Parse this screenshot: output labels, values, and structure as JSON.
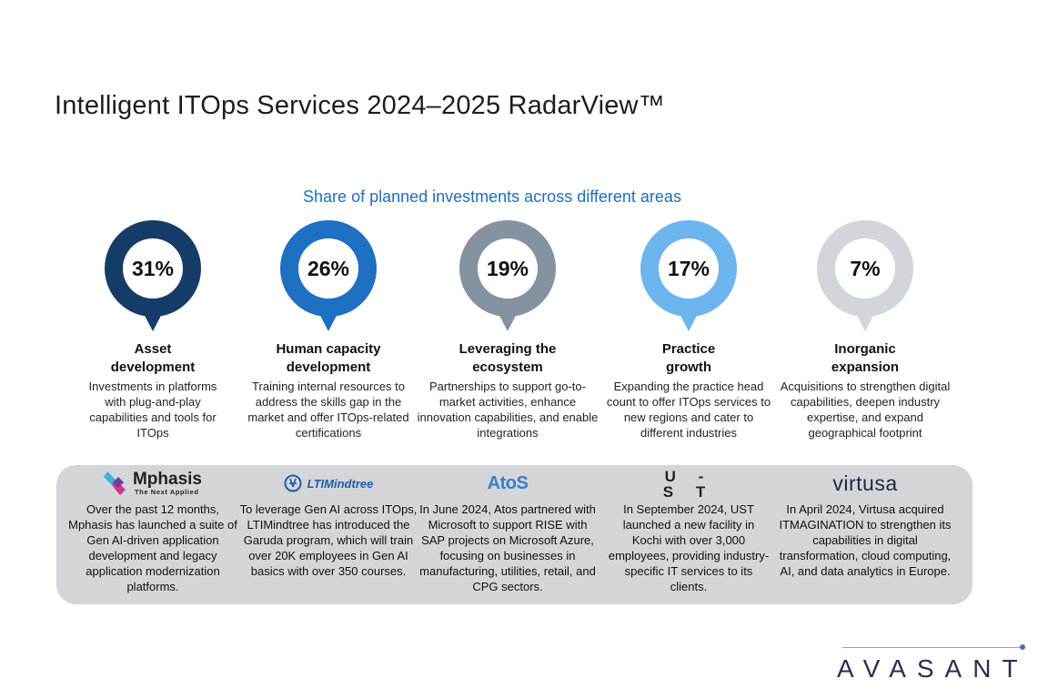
{
  "title": "Intelligent ITOps Services 2024–2025 RadarView™",
  "subtitle": "Share of planned investments across different areas",
  "areas": [
    {
      "percent": "31%",
      "value": 31,
      "color": "#163c69",
      "title": "Asset development",
      "description": "Investments in platforms with plug-and-play capabilities and tools for ITOps"
    },
    {
      "percent": "26%",
      "value": 26,
      "color": "#1d70c2",
      "title": "Human capacity development",
      "description": "Training internal resources to address the skills gap in the market and offer ITOps-related certifications"
    },
    {
      "percent": "19%",
      "value": 19,
      "color": "#8593a1",
      "title": "Leveraging the ecosystem",
      "description": "Partnerships to support go-to-market activities, enhance innovation capabilities, and enable integrations"
    },
    {
      "percent": "17%",
      "value": 17,
      "color": "#6cb5ee",
      "title": "Practice growth",
      "description": "Expanding the practice head count to offer ITOps services to new regions and cater to different industries"
    },
    {
      "percent": "7%",
      "value": 7,
      "color": "#d2d5da",
      "title": "Inorganic expansion",
      "description": "Acquisitions to strengthen digital capabilities, deepen industry expertise, and expand geographical footprint"
    }
  ],
  "companies": {
    "mphasis": {
      "name": "Mphasis",
      "tagline": "The Next Applied",
      "text": "Over the past 12 months, Mphasis has launched a suite of Gen AI-driven application development and legacy application modernization platforms."
    },
    "ltimindtree": {
      "name": "LTIMindtree",
      "text": "To leverage Gen AI across ITOps, LTIMindtree has introduced the Garuda program, which will train over 20K employees in Gen AI basics with over 350 courses."
    },
    "atos": {
      "name": "AtoS",
      "text": "In June 2024, Atos partnered with Microsoft to support RISE with SAP projects on Microsoft Azure, focusing on businesses in manufacturing, utilities, retail, and CPG sectors."
    },
    "ust": {
      "name_top": "U -",
      "name_bottom": "S T",
      "text": "In September 2024, UST launched a new facility in Kochi with over 3,000 employees, providing industry-specific IT services to its clients."
    },
    "virtusa": {
      "name": "virtusa",
      "text": "In April 2024, Virtusa acquired ITMAGINATION to strengthen its capabilities in digital transformation, cloud computing, AI, and data analytics in Europe."
    }
  },
  "brand": "AVASANT"
}
